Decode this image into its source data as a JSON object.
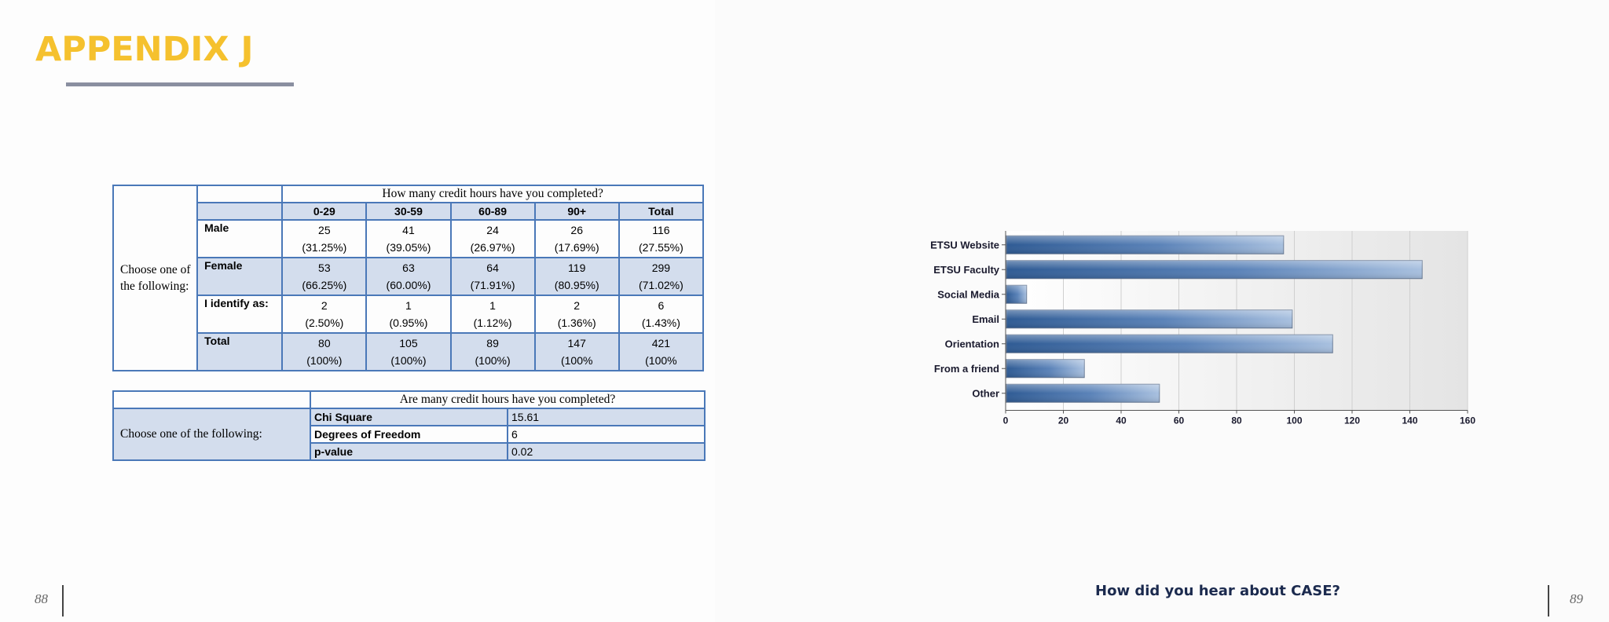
{
  "appendix_title": "APPENDIX J",
  "page_numbers": {
    "left": "88",
    "right": "89"
  },
  "crosstab": {
    "stub": "Choose one of the following:",
    "question": "How many credit hours have you completed?",
    "columns": [
      "0-29",
      "30-59",
      "60-89",
      "90+",
      "Total"
    ],
    "rows": [
      {
        "label": "Male",
        "counts": [
          "25",
          "41",
          "24",
          "26",
          "116"
        ],
        "pcts": [
          "(31.25%)",
          "(39.05%)",
          "(26.97%)",
          "(17.69%)",
          "(27.55%)"
        ]
      },
      {
        "label": "Female",
        "counts": [
          "53",
          "63",
          "64",
          "119",
          "299"
        ],
        "pcts": [
          "(66.25%)",
          "(60.00%)",
          "(71.91%)",
          "(80.95%)",
          "(71.02%)"
        ]
      },
      {
        "label": "I identify as:",
        "counts": [
          "2",
          "1",
          "1",
          "2",
          "6"
        ],
        "pcts": [
          "(2.50%)",
          "(0.95%)",
          "(1.12%)",
          "(1.36%)",
          "(1.43%)"
        ]
      },
      {
        "label": "Total",
        "counts": [
          "80",
          "105",
          "89",
          "147",
          "421"
        ],
        "pcts": [
          "(100%)",
          "(100%)",
          "(100%)",
          "(100%",
          "(100%"
        ]
      }
    ]
  },
  "chi_table": {
    "stub": "Choose one of the following:",
    "question": "Are many credit hours have you completed?",
    "rows": [
      {
        "label": "Chi Square",
        "value": "15.61"
      },
      {
        "label": "Degrees of Freedom",
        "value": "6"
      },
      {
        "label": "p-value",
        "value": "0.02"
      }
    ]
  },
  "chart_caption": "How did you hear about CASE?",
  "colors": {
    "accent_title": "#f5c12e",
    "table_border": "#4a78b8",
    "table_shade": "#d3dded",
    "bar_dark": "#2f5b94",
    "bar_light": "#a8c0df"
  },
  "chart_data": {
    "type": "bar",
    "orientation": "horizontal",
    "categories": [
      "ETSU Website",
      "ETSU Faculty",
      "Social Media",
      "Email",
      "Orientation",
      "From a friend",
      "Other"
    ],
    "values": [
      96,
      144,
      7,
      99,
      113,
      27,
      53
    ],
    "xlim": [
      0,
      160
    ],
    "xticks": [
      "0",
      "20",
      "40",
      "60",
      "80",
      "100",
      "120",
      "140",
      "160"
    ],
    "grid": true
  }
}
